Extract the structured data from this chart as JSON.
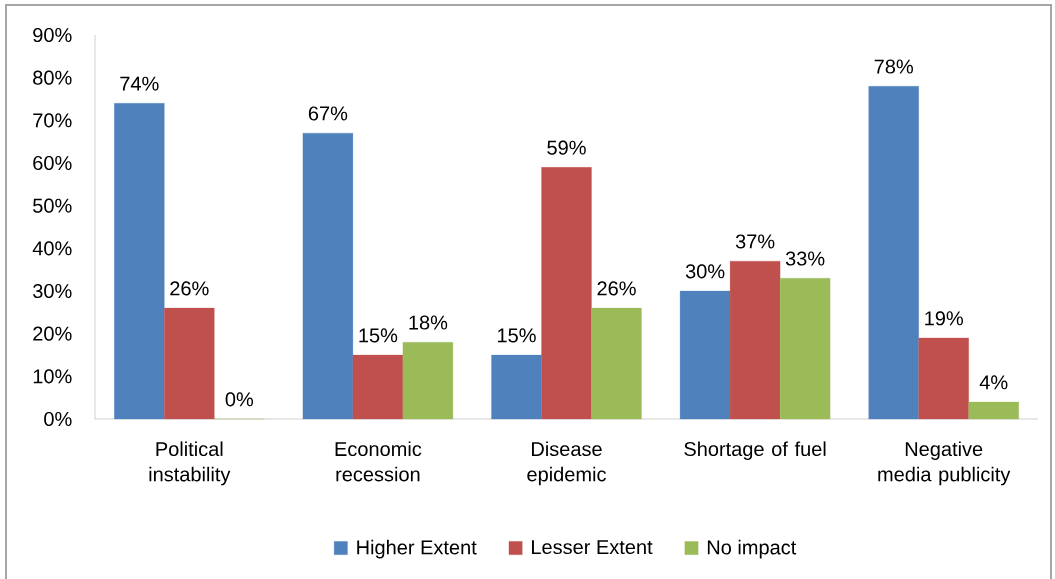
{
  "chart_data": {
    "type": "bar",
    "categories": [
      "Political instability",
      "Economic recession",
      "Disease epidemic",
      "Shortage of fuel",
      "Negative media publicity"
    ],
    "series": [
      {
        "name": "Higher Extent",
        "color": "#4f81bd",
        "values": [
          74,
          67,
          15,
          30,
          78
        ],
        "value_labels": [
          "74%",
          "67%",
          "15%",
          "30%",
          "78%"
        ]
      },
      {
        "name": "Lesser Extent",
        "color": "#c0504d",
        "values": [
          26,
          15,
          59,
          37,
          19
        ],
        "value_labels": [
          "26%",
          "15%",
          "59%",
          "37%",
          "19%"
        ]
      },
      {
        "name": "No impact",
        "color": "#9bbb59",
        "values": [
          0,
          18,
          26,
          33,
          4
        ],
        "value_labels": [
          "0%",
          "18%",
          "26%",
          "33%",
          "4%"
        ]
      }
    ],
    "ylim": [
      0,
      90
    ],
    "yticks": [
      {
        "value": 0,
        "label": "0%"
      },
      {
        "value": 10,
        "label": "10%"
      },
      {
        "value": 20,
        "label": "20%"
      },
      {
        "value": 30,
        "label": "30%"
      },
      {
        "value": 40,
        "label": "40%"
      },
      {
        "value": 50,
        "label": "50%"
      },
      {
        "value": 60,
        "label": "60%"
      },
      {
        "value": 70,
        "label": "70%"
      },
      {
        "value": 80,
        "label": "80%"
      },
      {
        "value": 90,
        "label": "90%"
      }
    ],
    "legend": "bottom"
  }
}
